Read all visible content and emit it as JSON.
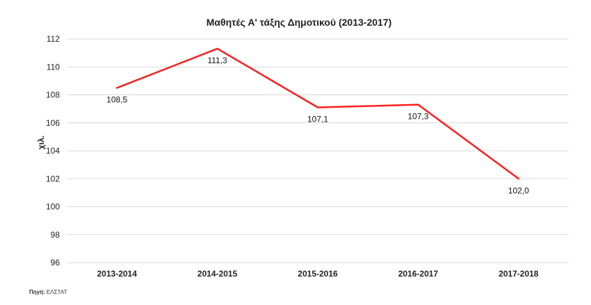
{
  "chart_data": {
    "type": "line",
    "title": "Μαθητές Α' τάξης Δημοτικού (2013-2017)",
    "xlabel": "",
    "ylabel": "χιλ.",
    "categories": [
      "2013-2014",
      "2014-2015",
      "2015-2016",
      "2016-2017",
      "2017-2018"
    ],
    "series": [
      {
        "values": [
          108.5,
          111.3,
          107.1,
          107.3,
          102.0
        ],
        "labels": [
          "108,5",
          "111,3",
          "107,1",
          "107,3",
          "102,0"
        ]
      }
    ],
    "ylim": [
      96,
      112
    ],
    "yticks": [
      96,
      98,
      100,
      102,
      104,
      106,
      108,
      110,
      112
    ],
    "grid": true,
    "legend": "none",
    "colors": {
      "line": "#ff1f1f",
      "grid": "#d9d9d9",
      "text": "#222222"
    }
  },
  "source": {
    "label": "Πηγή:",
    "text": "ΕΛΣΤΑΤ"
  }
}
